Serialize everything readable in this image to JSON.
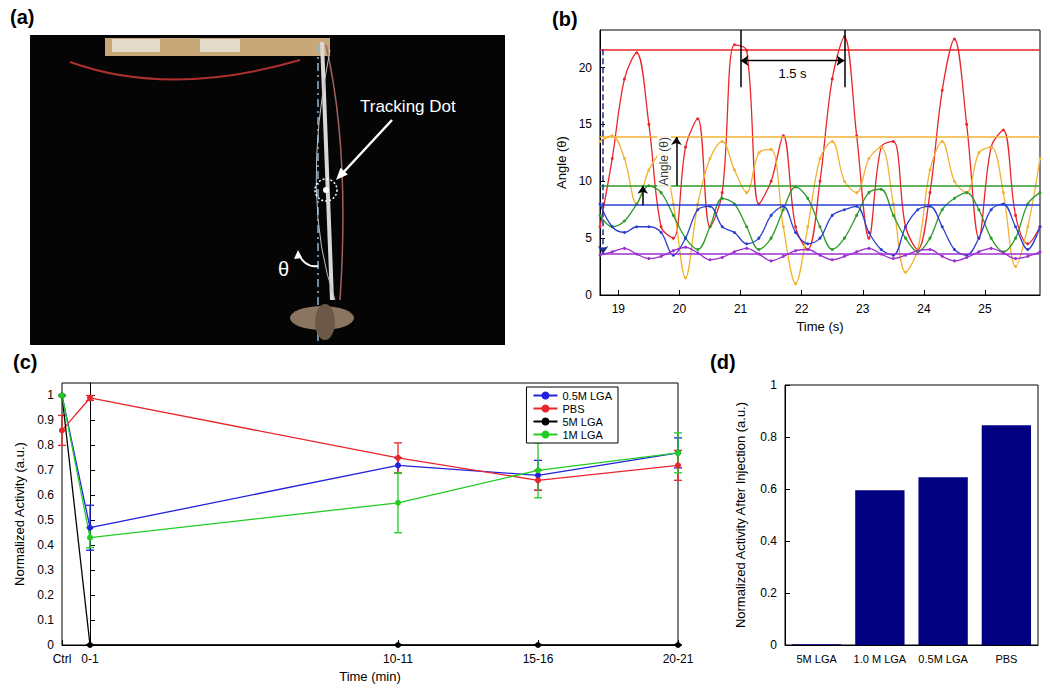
{
  "photo": {
    "title": "(a)",
    "annotations": [
      "Tracking Dot",
      "θ"
    ]
  },
  "chart_data": [
    {
      "type": "line",
      "title": "(b)",
      "x_label": "Time (s)",
      "y_label": "Angle (θ)",
      "x": [
        18.7,
        18.9,
        19.1,
        19.3,
        19.5,
        19.7,
        19.9,
        20.1,
        20.3,
        20.5,
        20.7,
        20.9,
        21.1,
        21.3,
        21.5,
        21.7,
        21.9,
        22.1,
        22.3,
        22.5,
        22.7,
        22.9,
        23.1,
        23.3,
        23.5,
        23.7,
        23.9,
        24.1,
        24.3,
        24.5,
        24.7,
        24.9,
        25.1,
        25.3,
        25.5,
        25.7,
        25.9
      ],
      "xlim": [
        18.7,
        25.9
      ],
      "xticks": [
        19,
        20,
        21,
        22,
        23,
        24,
        25
      ],
      "ylim": [
        0,
        23.3
      ],
      "yticks": [
        0,
        5,
        10,
        15,
        20
      ],
      "grid": false,
      "marker": "circle",
      "series": [
        {
          "color": "#e8262b",
          "level": 21.6,
          "values": [
            6,
            12,
            19,
            21.3,
            15,
            6,
            5,
            13,
            15.5,
            6,
            9,
            22,
            21.5,
            8,
            10,
            14,
            6,
            4,
            10,
            19,
            22.7,
            14,
            5,
            13,
            13.5,
            6,
            4,
            9,
            18,
            22.5,
            15,
            5,
            13,
            14.5,
            7,
            4.5,
            6
          ]
        },
        {
          "color": "#f2b233",
          "level": 13.9,
          "values": [
            13.5,
            14,
            12,
            8,
            11,
            12.5,
            8,
            1.5,
            8,
            12,
            13.5,
            11,
            9,
            12.5,
            12.8,
            6,
            1,
            6,
            12,
            13.5,
            10,
            9,
            12,
            13,
            8,
            2,
            4,
            11,
            13.5,
            10,
            9,
            12.5,
            13,
            9,
            2.5,
            6,
            12
          ]
        },
        {
          "color": "#2e9a2a",
          "level": 9.6,
          "values": [
            7,
            6,
            6.5,
            8,
            9.6,
            9,
            7,
            5,
            4,
            6,
            8.5,
            8,
            6,
            4,
            5,
            7.5,
            9.5,
            8.5,
            6,
            4,
            5,
            7,
            9,
            9.3,
            7,
            5,
            3.8,
            5,
            7.5,
            8.5,
            9,
            7.5,
            5,
            3.8,
            5,
            8,
            9
          ]
        },
        {
          "color": "#2a3fd0",
          "level": 7.9,
          "values": [
            8,
            6,
            5.5,
            6,
            6,
            5.5,
            3.5,
            5,
            7.5,
            7.8,
            6,
            5.5,
            4.5,
            5,
            7,
            7.8,
            5.5,
            4.5,
            5,
            7,
            7.5,
            7.8,
            5.5,
            4,
            3.5,
            6,
            7.5,
            7.8,
            6,
            4,
            3.5,
            5,
            7.5,
            8,
            6,
            4,
            6
          ]
        },
        {
          "color": "#9b30d0",
          "level": 3.6,
          "values": [
            3.5,
            3.8,
            4.1,
            3.6,
            3.2,
            3.4,
            3.9,
            4.2,
            3.7,
            3.1,
            3.3,
            3.8,
            4.1,
            3.6,
            3.0,
            3.4,
            3.9,
            4.0,
            3.5,
            3.1,
            3.4,
            3.8,
            4.1,
            3.6,
            3.2,
            3.5,
            3.9,
            4.0,
            3.4,
            3.0,
            3.3,
            3.8,
            4.1,
            3.7,
            3.2,
            3.4,
            3.8
          ]
        }
      ],
      "annotations": [
        {
          "text": "1.5 s",
          "x": [
            21.0,
            22.7
          ],
          "y": 20.6
        },
        {
          "text": "Angle (θ)",
          "x": 19.75,
          "y": 11.75
        }
      ],
      "arrows": [
        {
          "x": 18.75,
          "y": [
            21.6,
            3.6
          ],
          "color": "#1f2f8f",
          "line_style": "dashed"
        },
        {
          "x": 19.4,
          "y": [
            7.9,
            9.6
          ],
          "color": "#000000",
          "line_style": "solid"
        },
        {
          "x": 19.95,
          "y": [
            9.6,
            13.9
          ],
          "color": "#000000",
          "line_style": "solid"
        }
      ]
    },
    {
      "type": "line",
      "title": "(c)",
      "x_label": "Time (min)",
      "y_label": "Normalized Activity (a.u.)",
      "x": [
        -1,
        0,
        11,
        16,
        21
      ],
      "xlim": [
        -1,
        21
      ],
      "xticks": [
        {
          "value": -1,
          "label": "Ctrl"
        },
        {
          "value": 0,
          "label": "0-1"
        },
        {
          "value": 11,
          "label": "10-11"
        },
        {
          "value": 16,
          "label": "15-16"
        },
        {
          "value": 21,
          "label": "20-21"
        }
      ],
      "ylim": [
        0,
        1.05
      ],
      "yticks": [
        0,
        0.1,
        0.2,
        0.3,
        0.4,
        0.5,
        0.6,
        0.7,
        0.8,
        0.9,
        1
      ],
      "grid": false,
      "legend": "upper right",
      "marker": "circle",
      "series": [
        {
          "name": "0.5M LGA",
          "color": "#2222dd",
          "values": [
            1,
            0.47,
            0.72,
            0.68,
            0.77
          ],
          "errors": [
            0,
            0.09,
            0.03,
            0.06,
            0.06
          ]
        },
        {
          "name": "PBS",
          "color": "#e8262b",
          "values": [
            0.86,
            0.99,
            0.75,
            0.66,
            0.72
          ],
          "errors": [
            0.06,
            0.01,
            0.06,
            0.04,
            0.06
          ]
        },
        {
          "name": "5M LGA",
          "color": "#000000",
          "values": [
            1,
            0,
            0,
            0,
            0
          ],
          "errors": [
            0,
            0,
            0,
            0,
            0
          ]
        },
        {
          "name": "1M LGA",
          "color": "#22cc22",
          "values": [
            1,
            0.43,
            0.57,
            0.7,
            0.77
          ],
          "errors": [
            0,
            0.04,
            0.12,
            0.11,
            0.08
          ]
        }
      ]
    },
    {
      "type": "bar",
      "title": "(d)",
      "y_label": "Normalized Activity After Injection (a.u.)",
      "categories": [
        "5M LGA",
        "1.0 M LGA",
        "0.5M LGA",
        "PBS"
      ],
      "values": [
        0.003,
        0.595,
        0.645,
        0.845
      ],
      "color": "#000080",
      "ylim": [
        0,
        1
      ],
      "yticks": [
        0,
        0.2,
        0.4,
        0.6,
        0.8,
        1
      ],
      "grid": false
    }
  ]
}
